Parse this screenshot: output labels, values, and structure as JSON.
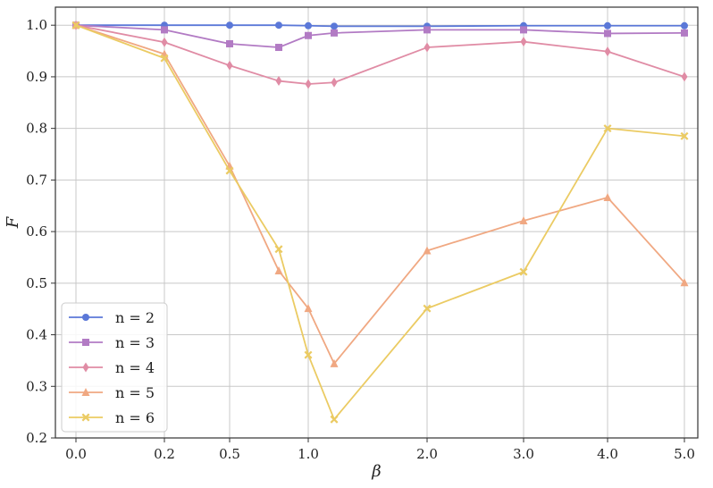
{
  "chart_data": {
    "type": "line",
    "title": "",
    "xlabel": "β",
    "ylabel": "F",
    "x": [
      0.0,
      0.2,
      0.5,
      0.8,
      1.0,
      1.2,
      2.0,
      3.0,
      4.0,
      5.0
    ],
    "x_tick_labels": [
      "0.0",
      "0.2",
      "0.5",
      "1.0",
      "2.0",
      "3.0",
      "4.0",
      "5.0"
    ],
    "y_ticks": [
      0.2,
      0.3,
      0.4,
      0.5,
      0.6,
      0.7,
      0.8,
      0.9,
      1.0
    ],
    "y_tick_labels": [
      "0.2",
      "0.3",
      "0.4",
      "0.5",
      "0.6",
      "0.7",
      "0.8",
      "0.9",
      "1.0"
    ],
    "ylim": [
      0.2,
      1.035
    ],
    "grid": true,
    "legend_position": "lower-left",
    "series": [
      {
        "name": "n = 2",
        "color": "#5b78d8",
        "marker": "circle",
        "values": [
          1.0,
          1.0,
          1.0,
          1.0,
          0.999,
          0.998,
          0.998,
          0.999,
          0.999,
          0.999
        ]
      },
      {
        "name": "n = 3",
        "color": "#b27bc4",
        "marker": "square",
        "values": [
          1.0,
          0.991,
          0.964,
          0.957,
          0.98,
          0.985,
          0.991,
          0.991,
          0.984,
          0.985
        ]
      },
      {
        "name": "n = 4",
        "color": "#e08ca5",
        "marker": "diamond",
        "values": [
          1.0,
          0.967,
          0.922,
          0.892,
          0.886,
          0.889,
          0.957,
          0.968,
          0.949,
          0.9
        ]
      },
      {
        "name": "n = 5",
        "color": "#f0a882",
        "marker": "triangle",
        "values": [
          1.0,
          0.944,
          0.727,
          0.524,
          0.451,
          0.344,
          0.563,
          0.621,
          0.666,
          0.501
        ]
      },
      {
        "name": "n = 6",
        "color": "#ebcb63",
        "marker": "x-filled",
        "values": [
          1.0,
          0.936,
          0.718,
          0.566,
          0.361,
          0.236,
          0.451,
          0.522,
          0.8,
          0.785
        ]
      }
    ]
  }
}
